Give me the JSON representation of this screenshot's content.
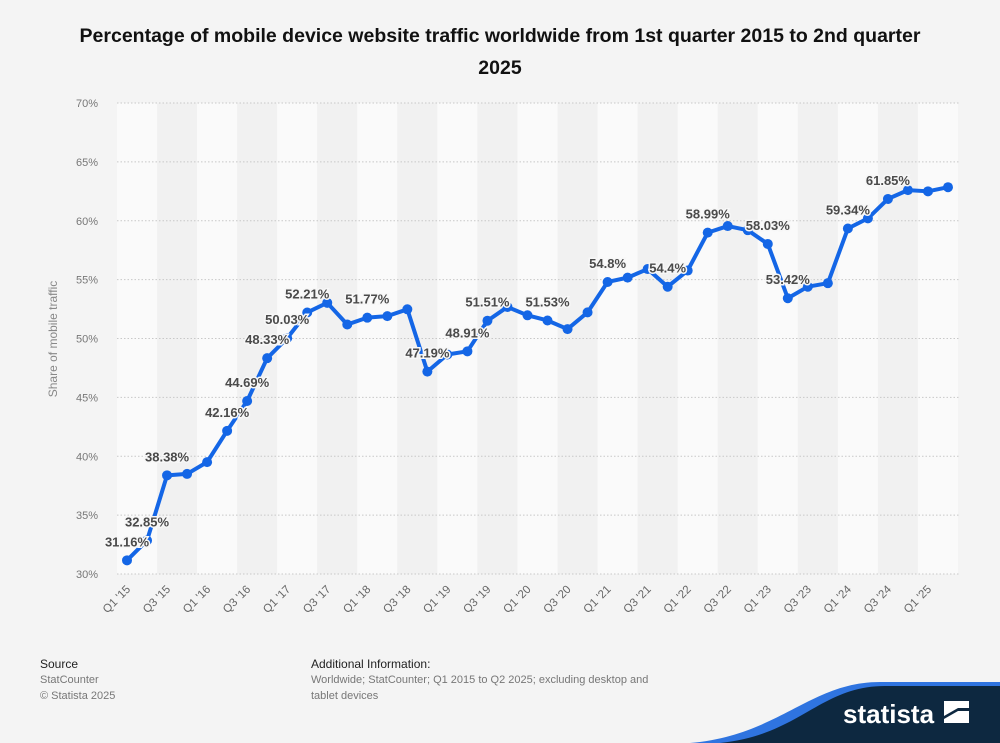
{
  "chart_data": {
    "type": "line",
    "title": "Percentage of mobile device website traffic worldwide from 1st quarter 2015 to 2nd quarter 2025",
    "ylabel": "Share of mobile traffic",
    "xlabel": "",
    "ylim": [
      30,
      70
    ],
    "yticks": [
      "30%",
      "35%",
      "40%",
      "45%",
      "50%",
      "55%",
      "60%",
      "65%",
      "70%"
    ],
    "ytick_values": [
      30,
      35,
      40,
      45,
      50,
      55,
      60,
      65,
      70
    ],
    "grid": true,
    "x": [
      "Q1 '15",
      "Q2 '15",
      "Q3 '15",
      "Q4 '15",
      "Q1 '16",
      "Q2 '16",
      "Q3 '16",
      "Q4 '16",
      "Q1 '17",
      "Q2 '17",
      "Q3 '17",
      "Q4 '17",
      "Q1 '18",
      "Q2 '18",
      "Q3 '18",
      "Q4 '18",
      "Q1 '19",
      "Q2 '19",
      "Q3 '19",
      "Q4 '19",
      "Q1 '20",
      "Q2 '20",
      "Q3 '20",
      "Q4 '20",
      "Q1 '21",
      "Q2 '21",
      "Q3 '21",
      "Q4 '21",
      "Q1 '22",
      "Q2 '22",
      "Q3 '22",
      "Q4 '22",
      "Q1 '23",
      "Q2 '23",
      "Q3 '23",
      "Q4 '23",
      "Q1 '24",
      "Q2 '24",
      "Q3 '24",
      "Q4 '24",
      "Q1 '25",
      "Q2 '25"
    ],
    "xtick_labels": [
      "Q1 '15",
      "Q3 '15",
      "Q1 '16",
      "Q3 '16",
      "Q1 '17",
      "Q3 '17",
      "Q1 '18",
      "Q3 '18",
      "Q1 '19",
      "Q3 '19",
      "Q1 '20",
      "Q3 '20",
      "Q1 '21",
      "Q3 '21",
      "Q1 '22",
      "Q3 '22",
      "Q1 '23",
      "Q3 '23",
      "Q1 '24",
      "Q3 '24",
      "Q1 '25"
    ],
    "values": [
      31.16,
      32.85,
      38.38,
      38.5,
      39.5,
      42.16,
      44.69,
      48.33,
      50.03,
      52.21,
      53.03,
      51.19,
      51.77,
      51.9,
      52.48,
      47.19,
      48.64,
      48.91,
      51.51,
      52.68,
      51.97,
      51.53,
      50.8,
      52.22,
      54.8,
      55.17,
      55.9,
      54.4,
      55.77,
      58.99,
      59.55,
      59.2,
      58.03,
      53.42,
      54.4,
      54.7,
      59.34,
      60.2,
      61.85,
      62.6,
      62.5,
      62.85
    ],
    "data_labels": [
      {
        "index": 0,
        "text": "31.16%"
      },
      {
        "index": 1,
        "text": "32.85%"
      },
      {
        "index": 2,
        "text": "38.38%"
      },
      {
        "index": 5,
        "text": "42.16%"
      },
      {
        "index": 6,
        "text": "44.69%"
      },
      {
        "index": 7,
        "text": "48.33%"
      },
      {
        "index": 8,
        "text": "50.03%"
      },
      {
        "index": 9,
        "text": "52.21%"
      },
      {
        "index": 12,
        "text": "51.77%"
      },
      {
        "index": 15,
        "text": "47.19%"
      },
      {
        "index": 17,
        "text": "48.91%"
      },
      {
        "index": 18,
        "text": "51.51%"
      },
      {
        "index": 21,
        "text": "51.53%"
      },
      {
        "index": 24,
        "text": "54.8%"
      },
      {
        "index": 27,
        "text": "54.4%"
      },
      {
        "index": 29,
        "text": "58.99%"
      },
      {
        "index": 32,
        "text": "58.03%"
      },
      {
        "index": 33,
        "text": "53.42%"
      },
      {
        "index": 36,
        "text": "59.34%"
      },
      {
        "index": 38,
        "text": "61.85%"
      }
    ],
    "line_color": "#1466e6"
  },
  "footer": {
    "source_heading": "Source",
    "source_lines": [
      "StatCounter",
      "© Statista 2025"
    ],
    "info_heading": "Additional Information:",
    "info_lines": [
      "Worldwide; StatCounter; Q1 2015 to Q2 2025; excluding desktop and",
      "tablet devices"
    ]
  },
  "brand": {
    "name": "statista",
    "navy": "#0d2840",
    "accent": "#2f74e0"
  }
}
